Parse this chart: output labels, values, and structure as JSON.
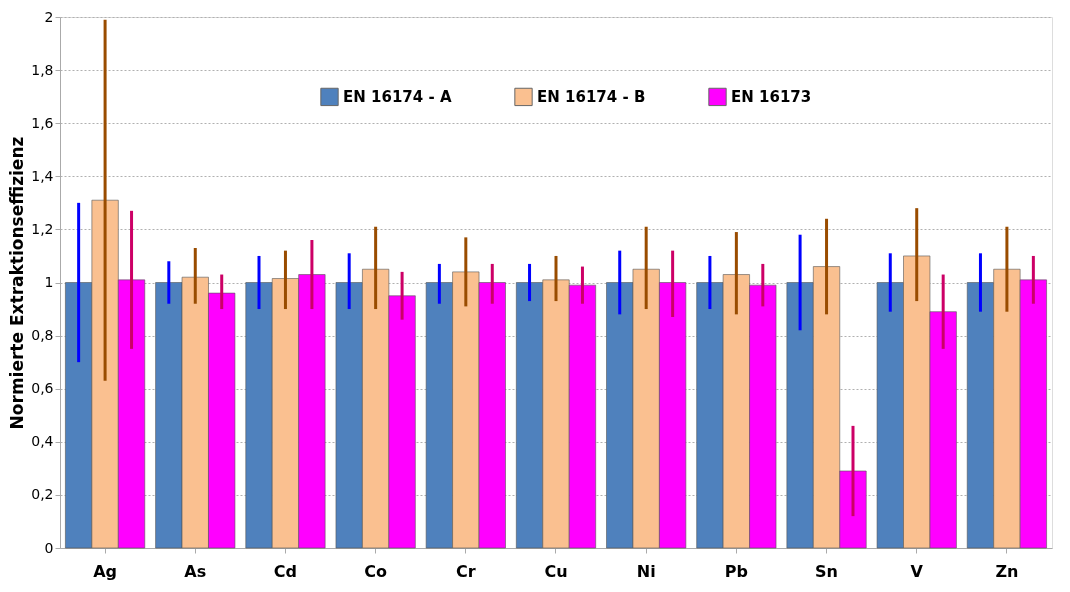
{
  "chart_data": {
    "type": "bar",
    "ylabel": "Normierte Extraktionseffizienz",
    "categories": [
      "Ag",
      "As",
      "Cd",
      "Co",
      "Cr",
      "Cu",
      "Ni",
      "Pb",
      "Sn",
      "V",
      "Zn"
    ],
    "series": [
      {
        "name": "EN 16174 - A",
        "color": "#4f81bd",
        "values": [
          1,
          1,
          1,
          1,
          1,
          1,
          1,
          1,
          1,
          1,
          1
        ],
        "errors": [
          [
            0.7,
            1.3
          ],
          [
            0.92,
            1.08
          ],
          [
            0.9,
            1.1
          ],
          [
            0.9,
            1.11
          ],
          [
            0.92,
            1.07
          ],
          [
            0.93,
            1.07
          ],
          [
            0.88,
            1.12
          ],
          [
            0.9,
            1.1
          ],
          [
            0.82,
            1.18
          ],
          [
            0.89,
            1.11
          ],
          [
            0.89,
            1.11
          ]
        ]
      },
      {
        "name": "EN 16174 - B",
        "color": "#fac090",
        "values": [
          1.31,
          1.02,
          1.015,
          1.05,
          1.04,
          1.01,
          1.05,
          1.03,
          1.06,
          1.1,
          1.05
        ],
        "errors": [
          [
            0.63,
            1.99
          ],
          [
            0.92,
            1.13
          ],
          [
            0.9,
            1.12
          ],
          [
            0.9,
            1.21
          ],
          [
            0.91,
            1.17
          ],
          [
            0.93,
            1.1
          ],
          [
            0.9,
            1.21
          ],
          [
            0.88,
            1.19
          ],
          [
            0.88,
            1.24
          ],
          [
            0.93,
            1.28
          ],
          [
            0.89,
            1.21
          ]
        ]
      },
      {
        "name": "EN 16173",
        "color": "#ff00ff",
        "values": [
          1.01,
          0.96,
          1.03,
          0.95,
          1.0,
          0.99,
          1.0,
          0.99,
          0.29,
          0.89,
          1.01
        ],
        "errors": [
          [
            0.75,
            1.27
          ],
          [
            0.9,
            1.03
          ],
          [
            0.9,
            1.16
          ],
          [
            0.86,
            1.04
          ],
          [
            0.92,
            1.07
          ],
          [
            0.92,
            1.06
          ],
          [
            0.87,
            1.12
          ],
          [
            0.91,
            1.07
          ],
          [
            0.12,
            0.46
          ],
          [
            0.75,
            1.03
          ],
          [
            0.92,
            1.1
          ]
        ]
      }
    ],
    "ylim": [
      0,
      2
    ],
    "yticks": [
      0,
      {
        "value": 0.2,
        "label": "0,2"
      },
      {
        "value": 0.4,
        "label": "0,4"
      },
      {
        "value": 0.6,
        "label": "0,6"
      },
      {
        "value": 0.8,
        "label": "0,8"
      },
      1,
      {
        "value": 1.2,
        "label": "1,2"
      },
      {
        "value": 1.4,
        "label": "1,4"
      },
      {
        "value": 1.6,
        "label": "1,6"
      },
      {
        "value": 1.8,
        "label": "1,8"
      },
      2
    ],
    "grid": "y",
    "legend": "top"
  }
}
